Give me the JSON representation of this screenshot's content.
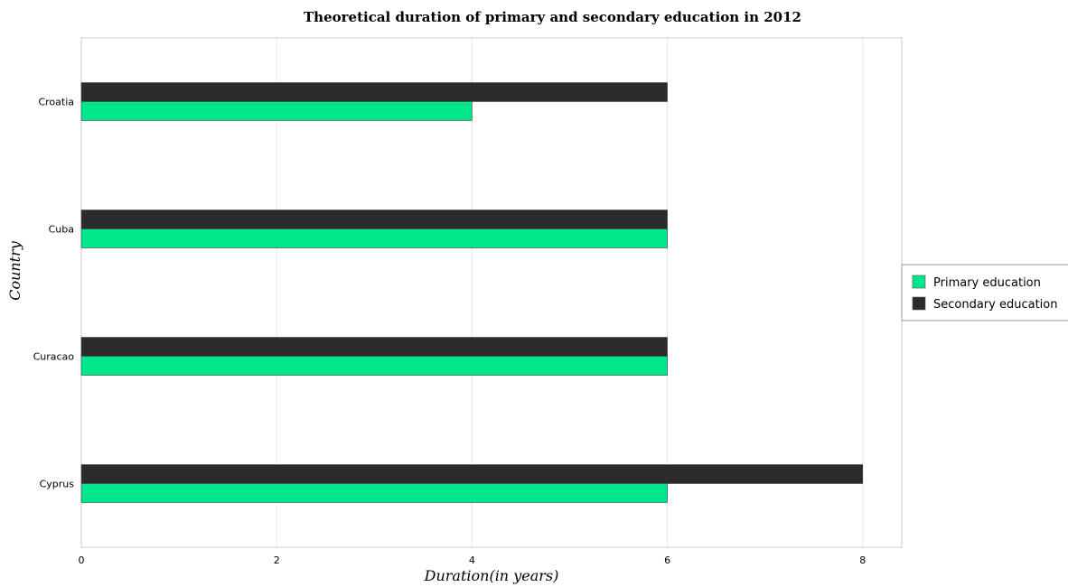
{
  "chart_data": {
    "type": "bar",
    "orientation": "horizontal",
    "title": "Theoretical duration of primary and secondary education in 2012",
    "xlabel": "Duration(in years)",
    "ylabel": "Country",
    "categories": [
      "Croatia",
      "Cuba",
      "Curacao",
      "Cyprus"
    ],
    "series": [
      {
        "name": "Primary education",
        "values": [
          4,
          6,
          6,
          6
        ],
        "color": "#00e68a"
      },
      {
        "name": "Secondary education",
        "values": [
          6,
          6,
          6,
          8
        ],
        "color": "#2b2b2b"
      }
    ],
    "xlim": [
      0,
      8.4
    ],
    "xticks": [
      0,
      2,
      4,
      6,
      8
    ],
    "xtick_labels": [
      "0",
      "2",
      "4",
      "6",
      "8"
    ],
    "grid": true,
    "legend_position": "right"
  }
}
